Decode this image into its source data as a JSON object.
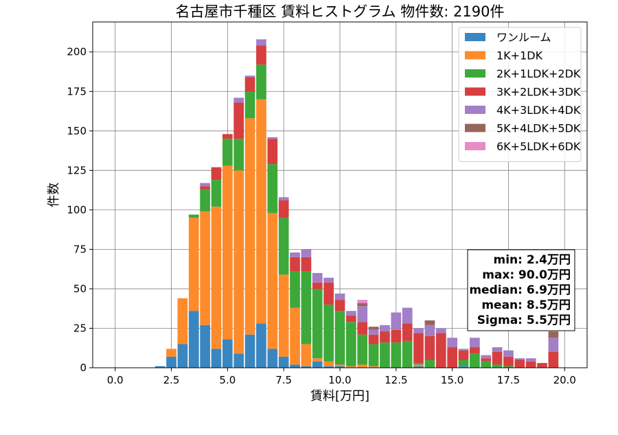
{
  "chart_data": {
    "type": "bar",
    "stacked": true,
    "title": "名古屋市千種区 賃料ヒストグラム 物件数: 2190件",
    "xlabel": "賃料[万円]",
    "ylabel": "件数",
    "xlim": [
      -1.0,
      21.0
    ],
    "ylim": [
      0,
      219
    ],
    "xticks": [
      0.0,
      2.5,
      5.0,
      7.5,
      10.0,
      12.5,
      15.0,
      17.5,
      20.0
    ],
    "xtick_labels": [
      "0.0",
      "2.5",
      "5.0",
      "7.5",
      "10.0",
      "12.5",
      "15.0",
      "17.5",
      "20.0"
    ],
    "yticks": [
      0,
      25,
      50,
      75,
      100,
      125,
      150,
      175,
      200
    ],
    "ytick_labels": [
      "0",
      "25",
      "50",
      "75",
      "100",
      "125",
      "150",
      "175",
      "200"
    ],
    "grid": true,
    "legend_position": "top-right",
    "bin_width": 0.5,
    "x": [
      2.0,
      2.5,
      3.0,
      3.5,
      4.0,
      4.5,
      5.0,
      5.5,
      6.0,
      6.5,
      7.0,
      7.5,
      8.0,
      8.5,
      9.0,
      9.5,
      10.0,
      10.5,
      11.0,
      11.5,
      12.0,
      12.5,
      13.0,
      13.5,
      14.0,
      14.5,
      15.0,
      15.5,
      16.0,
      16.5,
      17.0,
      17.5,
      18.0,
      18.5,
      19.0,
      19.5
    ],
    "series": [
      {
        "name": "ワンルーム",
        "color": "#3a86c0",
        "values": [
          1,
          7,
          15,
          36,
          27,
          12,
          18,
          9,
          21,
          28,
          12,
          7,
          2,
          1,
          4,
          1,
          1,
          0,
          0,
          0,
          0,
          0,
          0,
          1,
          0,
          0,
          0,
          1,
          0,
          0,
          0,
          0,
          0,
          0,
          0,
          0
        ]
      },
      {
        "name": "1K+1DK",
        "color": "#fd8b2b",
        "values": [
          0,
          5,
          29,
          59,
          72,
          90,
          110,
          116,
          137,
          142,
          86,
          52,
          36,
          14,
          2,
          3,
          1,
          1,
          2,
          1,
          0,
          0,
          0,
          1,
          0,
          0,
          0,
          0,
          0,
          0,
          0,
          0,
          0,
          0,
          0,
          0
        ]
      },
      {
        "name": "2K+1LDK+2DK",
        "color": "#3da93a",
        "values": [
          0,
          0,
          0,
          2,
          14,
          17,
          17,
          20,
          17,
          22,
          31,
          36,
          23,
          46,
          44,
          36,
          34,
          28,
          19,
          14,
          16,
          16,
          17,
          1,
          5,
          0,
          0,
          4,
          9,
          4,
          2,
          1,
          0,
          0,
          0,
          0
        ]
      },
      {
        "name": "3K+2LDK+3DK",
        "color": "#d73e3f",
        "values": [
          0,
          0,
          0,
          0,
          2,
          8,
          3,
          23,
          9,
          12,
          16,
          11,
          9,
          9,
          4,
          14,
          7,
          4,
          8,
          6,
          7,
          8,
          11,
          19,
          15,
          22,
          13,
          6,
          4,
          2,
          8,
          6,
          5,
          4,
          3,
          10
        ]
      },
      {
        "name": "4K+3LDK+4DK",
        "color": "#a27fc6",
        "values": [
          0,
          0,
          0,
          0,
          2,
          0,
          0,
          3,
          1,
          4,
          1,
          2,
          3,
          5,
          6,
          3,
          4,
          3,
          10,
          3,
          4,
          11,
          10,
          3,
          7,
          3,
          6,
          1,
          6,
          2,
          3,
          4,
          1,
          2,
          0,
          9
        ]
      },
      {
        "name": "5K+4LDK+5DK",
        "color": "#996558",
        "values": [
          0,
          0,
          0,
          0,
          0,
          0,
          0,
          0,
          0,
          0,
          0,
          0,
          0,
          0,
          0,
          0,
          0,
          0,
          2,
          2,
          0,
          0,
          0,
          0,
          3,
          0,
          0,
          0,
          0,
          0,
          0,
          0,
          0,
          0,
          0,
          4
        ]
      },
      {
        "name": "6K+5LDK+6DK",
        "color": "#e88cc7",
        "values": [
          0,
          0,
          0,
          0,
          0,
          0,
          0,
          0,
          0,
          0,
          0,
          0,
          0,
          0,
          0,
          0,
          0,
          0,
          2,
          0,
          0,
          0,
          0,
          0,
          0,
          0,
          0,
          0,
          0,
          0,
          0,
          0,
          0,
          0,
          0,
          0
        ]
      }
    ],
    "stats_box": {
      "lines": [
        "min: 2.4万円",
        "max: 90.0万円",
        "median: 6.9万円",
        "mean: 8.5万円",
        "Sigma: 5.5万円"
      ]
    }
  }
}
